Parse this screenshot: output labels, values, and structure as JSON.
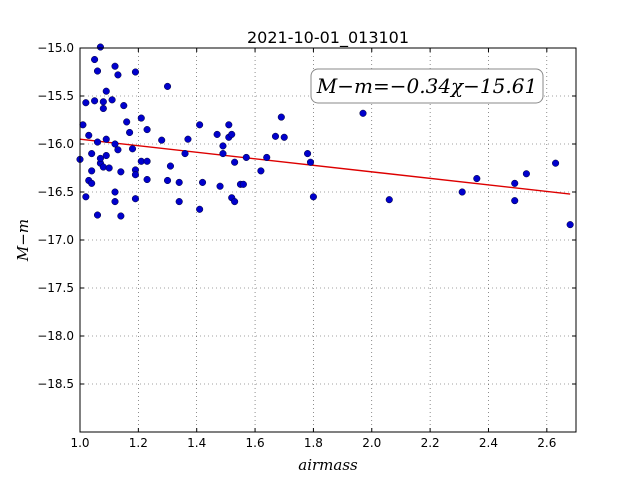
{
  "chart_data": {
    "type": "scatter",
    "title": "2021-10-01_013101",
    "xlabel": "airmass",
    "ylabel": "M−m",
    "xlim": [
      1.0,
      2.7
    ],
    "ylim": [
      -15.0,
      -19.0
    ],
    "y_inverted": true,
    "grid": true,
    "x_ticks": [
      "1.0",
      "1.2",
      "1.4",
      "1.6",
      "1.8",
      "2.0",
      "2.2",
      "2.4",
      "2.6"
    ],
    "y_ticks": [
      "−15.0",
      "−15.5",
      "−16.0",
      "−16.5",
      "−17.0",
      "−17.5",
      "−18.0",
      "−18.5"
    ],
    "annotation": "M−m=−0.34χ−15.61",
    "fit": {
      "slope": -0.34,
      "intercept": -15.61,
      "x_range": [
        1.0,
        2.68
      ],
      "color": "#dd0000"
    },
    "marker_color": "#0000cc",
    "points": [
      [
        1.0,
        -16.16
      ],
      [
        1.01,
        -15.8
      ],
      [
        1.02,
        -15.57
      ],
      [
        1.02,
        -16.55
      ],
      [
        1.03,
        -16.38
      ],
      [
        1.03,
        -15.91
      ],
      [
        1.04,
        -16.41
      ],
      [
        1.04,
        -16.28
      ],
      [
        1.04,
        -16.1
      ],
      [
        1.05,
        -15.55
      ],
      [
        1.05,
        -15.12
      ],
      [
        1.06,
        -15.24
      ],
      [
        1.06,
        -16.74
      ],
      [
        1.06,
        -15.98
      ],
      [
        1.07,
        -14.99
      ],
      [
        1.07,
        -16.2
      ],
      [
        1.07,
        -16.15
      ],
      [
        1.08,
        -15.63
      ],
      [
        1.08,
        -15.56
      ],
      [
        1.08,
        -16.24
      ],
      [
        1.09,
        -15.45
      ],
      [
        1.09,
        -16.12
      ],
      [
        1.09,
        -15.95
      ],
      [
        1.1,
        -16.25
      ],
      [
        1.11,
        -15.54
      ],
      [
        1.12,
        -16.0
      ],
      [
        1.12,
        -16.6
      ],
      [
        1.12,
        -15.19
      ],
      [
        1.12,
        -16.5
      ],
      [
        1.13,
        -15.28
      ],
      [
        1.13,
        -16.06
      ],
      [
        1.14,
        -16.75
      ],
      [
        1.14,
        -16.29
      ],
      [
        1.15,
        -15.6
      ],
      [
        1.16,
        -15.77
      ],
      [
        1.17,
        -15.88
      ],
      [
        1.18,
        -16.05
      ],
      [
        1.19,
        -15.25
      ],
      [
        1.19,
        -16.57
      ],
      [
        1.19,
        -16.27
      ],
      [
        1.19,
        -16.32
      ],
      [
        1.21,
        -15.73
      ],
      [
        1.21,
        -16.18
      ],
      [
        1.23,
        -16.18
      ],
      [
        1.23,
        -15.85
      ],
      [
        1.23,
        -16.37
      ],
      [
        1.28,
        -15.96
      ],
      [
        1.3,
        -16.38
      ],
      [
        1.3,
        -15.4
      ],
      [
        1.31,
        -16.23
      ],
      [
        1.34,
        -16.4
      ],
      [
        1.34,
        -16.6
      ],
      [
        1.36,
        -16.1
      ],
      [
        1.37,
        -15.95
      ],
      [
        1.41,
        -15.8
      ],
      [
        1.41,
        -16.68
      ],
      [
        1.42,
        -16.4
      ],
      [
        1.47,
        -15.9
      ],
      [
        1.48,
        -16.44
      ],
      [
        1.49,
        -16.1
      ],
      [
        1.49,
        -16.02
      ],
      [
        1.51,
        -15.8
      ],
      [
        1.51,
        -15.93
      ],
      [
        1.52,
        -15.9
      ],
      [
        1.52,
        -16.56
      ],
      [
        1.53,
        -16.6
      ],
      [
        1.53,
        -16.19
      ],
      [
        1.55,
        -16.42
      ],
      [
        1.56,
        -16.42
      ],
      [
        1.57,
        -16.14
      ],
      [
        1.62,
        -16.28
      ],
      [
        1.64,
        -16.14
      ],
      [
        1.67,
        -15.92
      ],
      [
        1.69,
        -15.72
      ],
      [
        1.7,
        -15.93
      ],
      [
        1.78,
        -16.1
      ],
      [
        1.79,
        -16.19
      ],
      [
        1.8,
        -16.55
      ],
      [
        1.97,
        -15.68
      ],
      [
        2.06,
        -16.58
      ],
      [
        2.31,
        -16.5
      ],
      [
        2.36,
        -16.36
      ],
      [
        2.49,
        -16.41
      ],
      [
        2.49,
        -16.59
      ],
      [
        2.53,
        -16.31
      ],
      [
        2.63,
        -16.2
      ],
      [
        2.68,
        -16.84
      ]
    ]
  }
}
